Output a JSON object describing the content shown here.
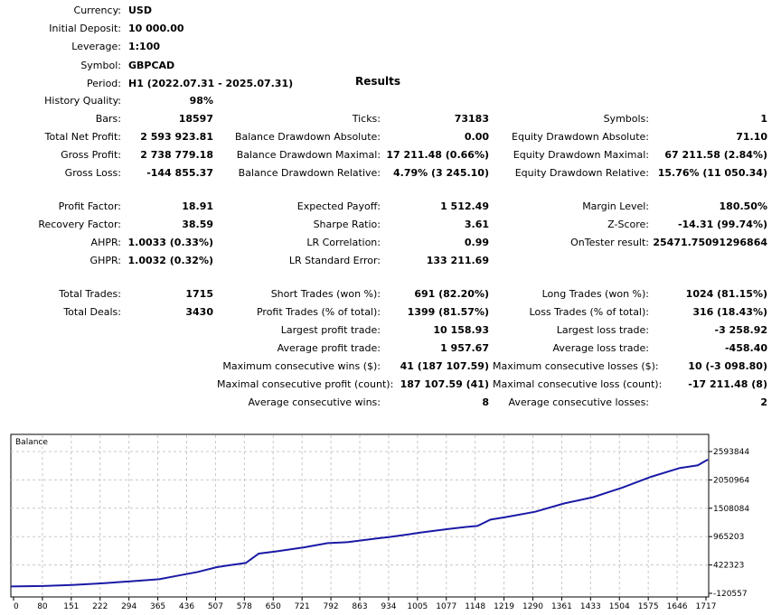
{
  "header": {
    "currency": {
      "label": "Currency:",
      "value": "USD"
    },
    "initial_deposit": {
      "label": "Initial Deposit:",
      "value": "10 000.00"
    },
    "leverage": {
      "label": "Leverage:",
      "value": "1:100"
    },
    "symbol": {
      "label": "Symbol:",
      "value": "GBPCAD"
    },
    "period": {
      "label": "Period:",
      "value": "H1 (2022.07.31 - 2025.07.31)"
    }
  },
  "results_title": "Results",
  "history_quality": {
    "label": "History Quality:",
    "value": "98%"
  },
  "rows": [
    {
      "c1": {
        "label": "Bars:",
        "value": "18597"
      },
      "c2": {
        "label": "Ticks:",
        "value": "73183"
      },
      "c3": {
        "label": "Symbols:",
        "value": "1"
      }
    },
    {
      "c1": {
        "label": "Total Net Profit:",
        "value": "2 593 923.81"
      },
      "c2": {
        "label": "Balance Drawdown Absolute:",
        "value": "0.00"
      },
      "c3": {
        "label": "Equity Drawdown Absolute:",
        "value": "71.10"
      }
    },
    {
      "c1": {
        "label": "Gross Profit:",
        "value": "2 738 779.18"
      },
      "c2": {
        "label": "Balance Drawdown Maximal:",
        "value": "17 211.48 (0.66%)"
      },
      "c3": {
        "label": "Equity Drawdown Maximal:",
        "value": "67 211.58 (2.84%)"
      }
    },
    {
      "c1": {
        "label": "Gross Loss:",
        "value": "-144 855.37"
      },
      "c2": {
        "label": "Balance Drawdown Relative:",
        "value": "4.79% (3 245.10)"
      },
      "c3": {
        "label": "Equity Drawdown Relative:",
        "value": "15.76% (11 050.34)"
      }
    },
    {
      "c1": {
        "label": "Profit Factor:",
        "value": "18.91"
      },
      "c2": {
        "label": "Expected Payoff:",
        "value": "1 512.49"
      },
      "c3": {
        "label": "Margin Level:",
        "value": "180.50%"
      }
    },
    {
      "c1": {
        "label": "Recovery Factor:",
        "value": "38.59"
      },
      "c2": {
        "label": "Sharpe Ratio:",
        "value": "3.61"
      },
      "c3": {
        "label": "Z-Score:",
        "value": "-14.31 (99.74%)"
      }
    },
    {
      "c1": {
        "label": "AHPR:",
        "value": "1.0033 (0.33%)"
      },
      "c2": {
        "label": "LR Correlation:",
        "value": "0.99"
      },
      "c3": {
        "label": "OnTester result:",
        "value": "25471.75091296864"
      }
    },
    {
      "c1": {
        "label": "GHPR:",
        "value": "1.0032 (0.32%)"
      },
      "c2": {
        "label": "LR Standard Error:",
        "value": "133 211.69"
      }
    },
    {
      "c1": {
        "label": "Total Trades:",
        "value": "1715"
      },
      "c2": {
        "label": "Short Trades (won %):",
        "value": "691 (82.20%)"
      },
      "c3": {
        "label": "Long Trades (won %):",
        "value": "1024 (81.15%)"
      }
    },
    {
      "c1": {
        "label": "Total Deals:",
        "value": "3430"
      },
      "c2": {
        "label": "Profit Trades (% of total):",
        "value": "1399 (81.57%)"
      },
      "c3": {
        "label": "Loss Trades (% of total):",
        "value": "316 (18.43%)"
      }
    },
    {
      "c2": {
        "label": "Largest profit trade:",
        "value": "10 158.93"
      },
      "c3": {
        "label": "Largest loss trade:",
        "value": "-3 258.92"
      }
    },
    {
      "c2": {
        "label": "Average profit trade:",
        "value": "1 957.67"
      },
      "c3": {
        "label": "Average loss trade:",
        "value": "-458.40"
      }
    },
    {
      "c2": {
        "label": "Maximum consecutive wins ($):",
        "value": "41 (187 107.59)"
      },
      "c3": {
        "label": "Maximum consecutive losses ($):",
        "value": "10 (-3 098.80)"
      }
    },
    {
      "c2": {
        "label": "Maximal consecutive profit (count):",
        "value": "187 107.59 (41)"
      },
      "c3": {
        "label": "Maximal consecutive loss (count):",
        "value": "-17 211.48 (8)"
      }
    },
    {
      "c2": {
        "label": "Average consecutive wins:",
        "value": "8"
      },
      "c3": {
        "label": "Average consecutive losses:",
        "value": "2"
      }
    }
  ],
  "chart_data": {
    "type": "line",
    "title": "Balance",
    "series": [
      {
        "color": "#1a1aa6",
        "x": [
          0,
          80,
          151,
          222,
          294,
          365,
          420,
          460,
          507,
          540,
          578,
          610,
          650,
          721,
          780,
          830,
          900,
          934,
          980,
          1005,
          1077,
          1120,
          1148,
          1180,
          1219,
          1290,
          1361,
          1433,
          1480,
          1504,
          1575,
          1646,
          1690,
          1715
        ],
        "y": [
          10000,
          20000,
          40000,
          70000,
          110000,
          150000,
          230000,
          290000,
          380000,
          420000,
          460000,
          640000,
          680000,
          760000,
          840000,
          860000,
          930000,
          960000,
          1010000,
          1040000,
          1110000,
          1150000,
          1170000,
          1290000,
          1340000,
          1440000,
          1600000,
          1720000,
          1840000,
          1900000,
          2110000,
          2280000,
          2330000,
          2440000
        ]
      }
    ],
    "xticks": [
      "0",
      "80",
      "151",
      "222",
      "294",
      "365",
      "436",
      "507",
      "578",
      "650",
      "721",
      "792",
      "863",
      "934",
      "1005",
      "1077",
      "1148",
      "1219",
      "1290",
      "1361",
      "1433",
      "1504",
      "1575",
      "1646",
      "1717"
    ],
    "yticks": [
      "2593844",
      "2050964",
      "1508084",
      "965203",
      "422323",
      "-120557"
    ],
    "xlim": [
      0,
      1717
    ],
    "ylim": [
      -120557,
      2593844
    ],
    "grid": true
  }
}
